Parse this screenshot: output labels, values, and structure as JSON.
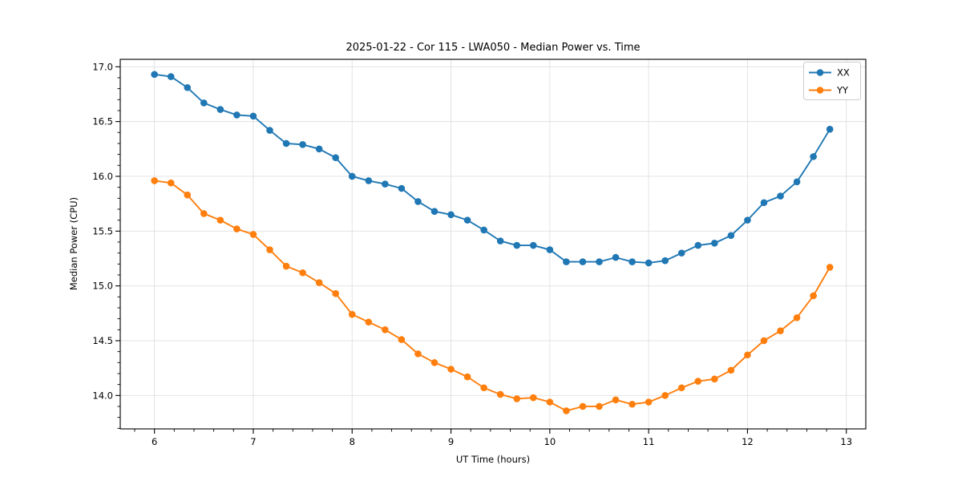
{
  "figure": {
    "background": "#ffffff",
    "spine_color": "#000000",
    "grid_color": "#e0e0e0",
    "legend": {
      "border_color": "#cccccc",
      "background": "#ffffff"
    }
  },
  "chart_data": {
    "type": "line",
    "title": "2025-01-22 - Cor 115 - LWA050 - Median Power vs. Time",
    "xlabel": "UT Time (hours)",
    "ylabel": "Median Power (CPU)",
    "xlim": [
      5.654,
      13.197
    ],
    "ylim": [
      13.695,
      17.068
    ],
    "x_ticks": [
      6,
      7,
      8,
      9,
      10,
      11,
      12,
      13
    ],
    "x_tick_labels": [
      "6",
      "7",
      "8",
      "9",
      "10",
      "11",
      "12",
      "13"
    ],
    "y_ticks": [
      14.0,
      14.5,
      15.0,
      15.5,
      16.0,
      16.5,
      17.0
    ],
    "y_tick_labels": [
      "14.0",
      "14.5",
      "15.0",
      "15.5",
      "16.0",
      "16.5",
      "17.0"
    ],
    "x_minor_step": 0.2,
    "y_minor_step": 0.1,
    "grid": true,
    "legend_position": "upper right",
    "marker": "circle",
    "x": [
      6.0,
      6.1667,
      6.3333,
      6.5,
      6.6667,
      6.8333,
      7.0,
      7.1667,
      7.3333,
      7.5,
      7.6667,
      7.8333,
      8.0,
      8.1667,
      8.3333,
      8.5,
      8.6667,
      8.8333,
      9.0,
      9.1667,
      9.3333,
      9.5,
      9.6667,
      9.8333,
      10.0,
      10.1667,
      10.3333,
      10.5,
      10.6667,
      10.8333,
      11.0,
      11.1667,
      11.3333,
      11.5,
      11.6667,
      11.8333,
      12.0,
      12.1667,
      12.3333,
      12.5,
      12.6667,
      12.8333
    ],
    "series": [
      {
        "name": "XX",
        "color": "#1f77b4",
        "values": [
          16.93,
          16.91,
          16.81,
          16.67,
          16.61,
          16.56,
          16.55,
          16.42,
          16.3,
          16.29,
          16.25,
          16.17,
          16.0,
          15.96,
          15.93,
          15.89,
          15.77,
          15.68,
          15.65,
          15.6,
          15.51,
          15.41,
          15.37,
          15.37,
          15.33,
          15.22,
          15.22,
          15.22,
          15.26,
          15.22,
          15.21,
          15.23,
          15.3,
          15.37,
          15.39,
          15.46,
          15.6,
          15.76,
          15.82,
          15.95,
          16.18,
          16.43
        ]
      },
      {
        "name": "YY",
        "color": "#ff7f0e",
        "values": [
          15.96,
          15.94,
          15.83,
          15.66,
          15.6,
          15.52,
          15.47,
          15.33,
          15.18,
          15.12,
          15.03,
          14.93,
          14.74,
          14.67,
          14.6,
          14.51,
          14.38,
          14.3,
          14.24,
          14.17,
          14.07,
          14.01,
          13.97,
          13.98,
          13.94,
          13.86,
          13.9,
          13.9,
          13.96,
          13.92,
          13.94,
          14.0,
          14.07,
          14.13,
          14.15,
          14.23,
          14.37,
          14.5,
          14.59,
          14.71,
          14.91,
          15.17
        ]
      }
    ]
  }
}
